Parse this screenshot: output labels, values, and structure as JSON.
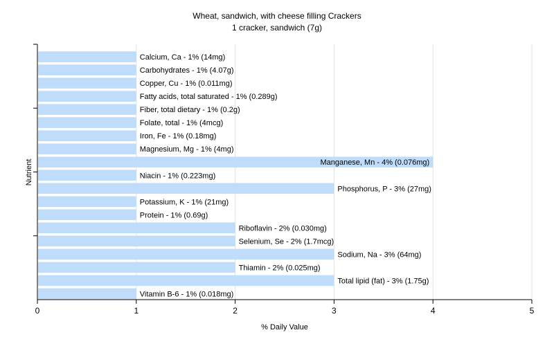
{
  "chart_data": {
    "type": "bar",
    "orientation": "horizontal",
    "title": "Wheat, sandwich, with cheese filling Crackers",
    "subtitle": "1 cracker, sandwich (7g)",
    "xlabel": "% Daily Value",
    "ylabel": "Nutrient",
    "xlim": [
      0,
      5
    ],
    "xticks": [
      "0",
      "1",
      "2",
      "3",
      "4",
      "5"
    ],
    "grid": true,
    "categories": [
      "Calcium, Ca",
      "Carbohydrates",
      "Copper, Cu",
      "Fatty acids, total saturated",
      "Fiber, total dietary",
      "Folate, total",
      "Iron, Fe",
      "Magnesium, Mg",
      "Manganese, Mn",
      "Niacin",
      "Phosphorus, P",
      "Potassium, K",
      "Protein",
      "Riboflavin",
      "Selenium, Se",
      "Sodium, Na",
      "Thiamin",
      "Total lipid (fat)",
      "Vitamin B-6"
    ],
    "values": [
      1,
      1,
      1,
      1,
      1,
      1,
      1,
      1,
      4,
      1,
      3,
      1,
      1,
      2,
      2,
      3,
      2,
      3,
      1
    ],
    "labels": [
      "Calcium, Ca - 1% (14mg)",
      "Carbohydrates - 1% (4.07g)",
      "Copper, Cu - 1% (0.011mg)",
      "Fatty acids, total saturated - 1% (0.289g)",
      "Fiber, total dietary - 1% (0.2g)",
      "Folate, total - 1% (4mcg)",
      "Iron, Fe - 1% (0.18mg)",
      "Magnesium, Mg - 1% (4mg)",
      "Manganese, Mn - 4% (0.076mg)",
      "Niacin - 1% (0.223mg)",
      "Phosphorus, P - 3% (27mg)",
      "Potassium, K - 1% (21mg)",
      "Protein - 1% (0.69g)",
      "Riboflavin - 2% (0.030mg)",
      "Selenium, Se - 2% (1.7mcg)",
      "Sodium, Na - 3% (64mg)",
      "Thiamin - 2% (0.025mg)",
      "Total lipid (fat) - 3% (1.75g)",
      "Vitamin B-6 - 1% (0.018mg)"
    ],
    "colors": {
      "bar": "#bfdcfb",
      "grid": "#e2e2e2",
      "axis": "#000000"
    }
  }
}
